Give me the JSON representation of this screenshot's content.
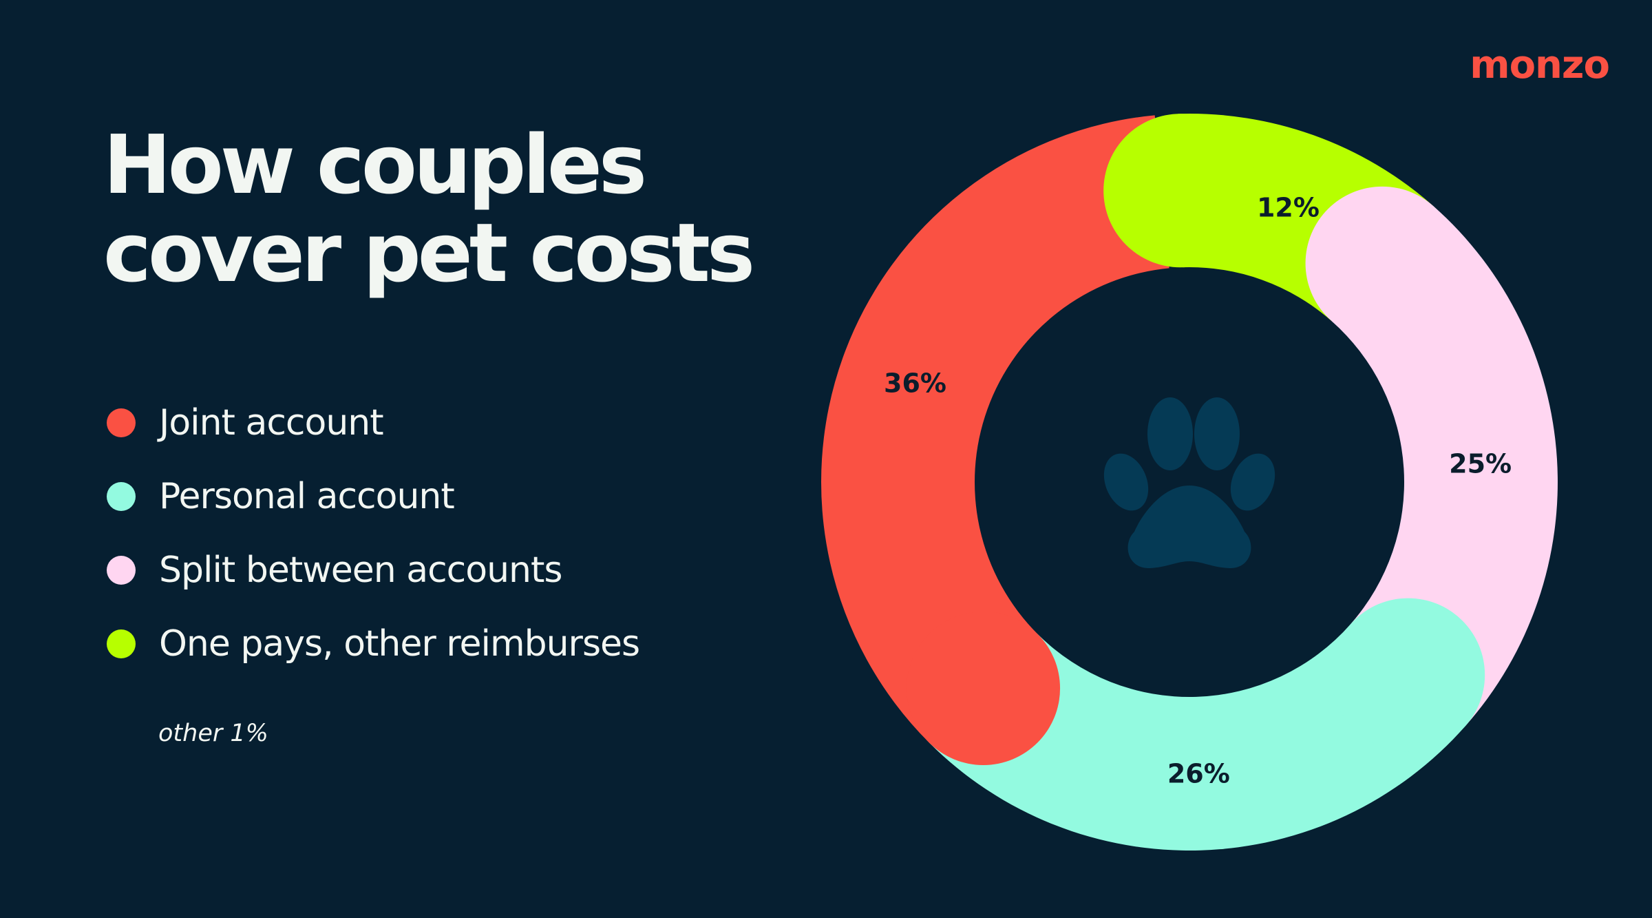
{
  "brand": "monzo",
  "title_lines": [
    "How couples",
    "cover pet costs"
  ],
  "note": "other 1%",
  "icon": "paw-print-icon",
  "colors": {
    "background": "#061f31",
    "text": "#f2f6f2",
    "brand": "#fa5143",
    "paw": "#053a55"
  },
  "chart_data": {
    "type": "pie",
    "style": "donut",
    "categories": [
      "Joint account",
      "Personal account",
      "Split between accounts",
      "One pays, other reimburses"
    ],
    "values": [
      36,
      26,
      25,
      12
    ],
    "value_labels": [
      "36%",
      "26%",
      "25%",
      "12%"
    ],
    "colors": [
      "#fa5143",
      "#93fae0",
      "#ffd6f1",
      "#b7ff00"
    ],
    "legend_placement": "left",
    "other_note": "other 1%"
  }
}
